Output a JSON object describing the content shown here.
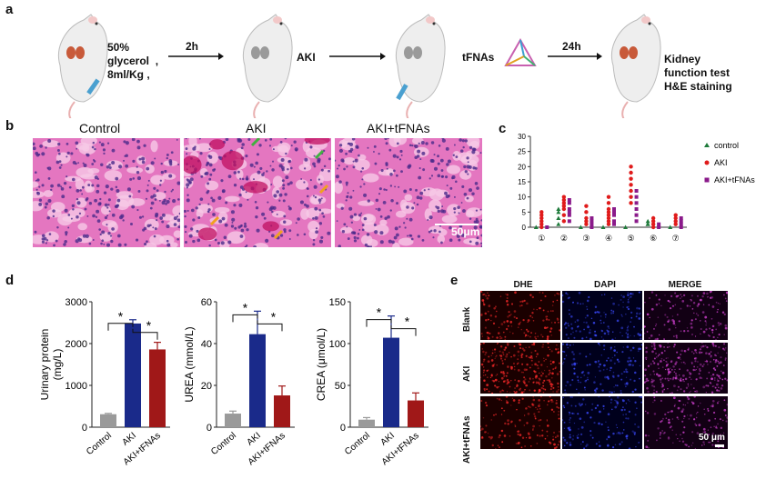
{
  "panel_a": {
    "label": "a",
    "step1_text": [
      "50%",
      "glycerol  ,",
      "8ml/Kg ,"
    ],
    "arrow1": "2h",
    "step2_text": "AKI",
    "step3_text": "tFNAs",
    "arrow2": "24h",
    "final_text": [
      "Kidney",
      "function test",
      "H&E staining"
    ]
  },
  "panel_b": {
    "label": "b",
    "titles": [
      "Control",
      "AKI",
      "AKI+tFNAs"
    ],
    "scale": "50μm"
  },
  "panel_c": {
    "label": "c",
    "legend": [
      "control",
      "AKI",
      "AKI+tFNAs"
    ],
    "colors": {
      "control": "#1e7a3a",
      "aki": "#e01b1b",
      "tfnas": "#8a1a8a"
    }
  },
  "panel_d": {
    "label": "d"
  },
  "panel_e": {
    "label": "e",
    "cols": [
      "DHE",
      "DAPI",
      "MERGE"
    ],
    "rows": [
      "Blank",
      "AKI",
      "AKI+tFNAs"
    ],
    "scale": "50 μm"
  },
  "chart_data": [
    {
      "type": "scatter",
      "categories": [
        "①",
        "②",
        "③",
        "④",
        "⑤",
        "⑥",
        "⑦"
      ],
      "ylim": [
        0,
        30
      ],
      "yticks": [
        0,
        5,
        10,
        15,
        20,
        25,
        30
      ],
      "legend_position": "right",
      "series": [
        {
          "name": "control",
          "values": [
            [
              0
            ],
            [
              1,
              3,
              5,
              6
            ],
            [
              0
            ],
            [
              0
            ],
            [
              0
            ],
            [
              1,
              1,
              2
            ],
            [
              0
            ]
          ]
        },
        {
          "name": "AKI",
          "values": [
            [
              0,
              1,
              2,
              3,
              4,
              5
            ],
            [
              2,
              4,
              6,
              7,
              8,
              9,
              10
            ],
            [
              1,
              2,
              3,
              5,
              7
            ],
            [
              1,
              2,
              3,
              4,
              5,
              6,
              8,
              10
            ],
            [
              8,
              10,
              12,
              14,
              16,
              18,
              20
            ],
            [
              0,
              1,
              2,
              3
            ],
            [
              1,
              2,
              3,
              4
            ]
          ]
        },
        {
          "name": "AKI+tFNAs",
          "values": [
            [
              0
            ],
            [
              2,
              4,
              5,
              6,
              8,
              9
            ],
            [
              0,
              1,
              2,
              3
            ],
            [
              1,
              2,
              4,
              5,
              6
            ],
            [
              2,
              4,
              6,
              8,
              10,
              12
            ],
            [
              0,
              1
            ],
            [
              0,
              1,
              2,
              3
            ]
          ]
        }
      ]
    },
    {
      "type": "bar",
      "categories": [
        "Control",
        "AKI",
        "AKI+tFNAs"
      ],
      "values": [
        310,
        2480,
        1860
      ],
      "errors": [
        20,
        90,
        170
      ],
      "ylabel": "Urinary protein\n(mg/L)",
      "ylim": [
        0,
        3000
      ],
      "yticks": [
        0,
        1000,
        2000,
        3000
      ],
      "colors": [
        "#9a9a9a",
        "#1a2a8a",
        "#a01818"
      ],
      "significance": [
        "*",
        "*"
      ]
    },
    {
      "type": "bar",
      "categories": [
        "Control",
        "AKI",
        "AKI+tFNAs"
      ],
      "values": [
        6.5,
        44.5,
        15.2
      ],
      "errors": [
        1.2,
        11,
        4.5
      ],
      "ylabel": "UREA (mmol/L)",
      "ylim": [
        0,
        60
      ],
      "yticks": [
        0,
        20,
        40,
        60
      ],
      "colors": [
        "#9a9a9a",
        "#1a2a8a",
        "#a01818"
      ],
      "significance": [
        "*",
        "*"
      ]
    },
    {
      "type": "bar",
      "categories": [
        "Control",
        "AKI",
        "AKI+tFNAs"
      ],
      "values": [
        9,
        107,
        32
      ],
      "errors": [
        2.5,
        26,
        9
      ],
      "ylabel": "CREA (μmol/L)",
      "ylim": [
        0,
        150
      ],
      "yticks": [
        0,
        50,
        100,
        150
      ],
      "colors": [
        "#9a9a9a",
        "#1a2a8a",
        "#a01818"
      ],
      "significance": [
        "*",
        "*"
      ]
    }
  ]
}
